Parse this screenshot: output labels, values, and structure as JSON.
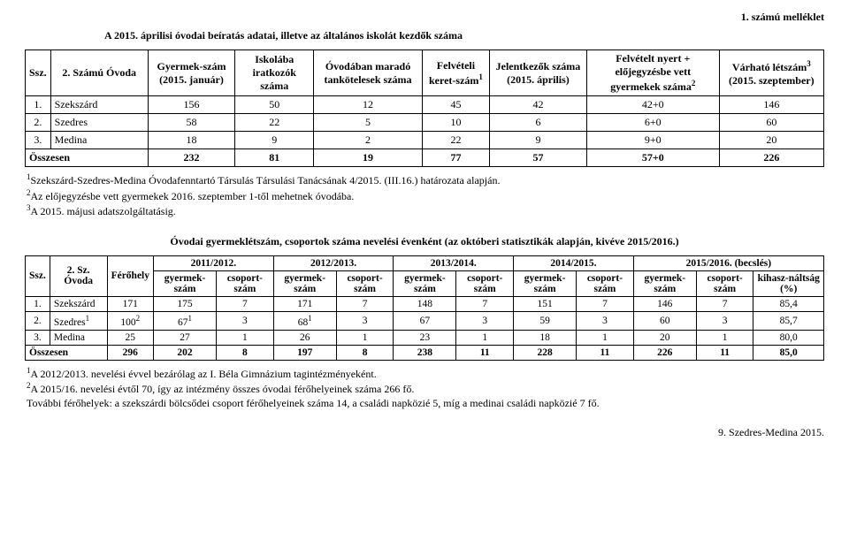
{
  "header_right": "1. számú melléklet",
  "title": "A 2015. áprilisi óvodai beíratás adatai, illetve az általános iskolát kezdők száma",
  "t1": {
    "headers": {
      "ssz": "Ssz.",
      "ovoda": "2. Számú Óvoda",
      "gyermek": "Gyermek-szám (2015. január)",
      "iskolaba": "Iskolába iratkozók száma",
      "ovodaban": "Óvodában maradó tankötelesek száma",
      "felveteli": "Felvételi keret-szám",
      "felveteli_sup": "1",
      "jelentkezok": "Jelentkezők száma (2015. április)",
      "nyert": "Felvételt nyert + előjegyzésbe vett gyermekek száma",
      "nyert_sup": "2",
      "varhato": "Várható létszám",
      "varhato_sup": "3",
      "varhato2": " (2015. szeptember)"
    },
    "rows": [
      {
        "n": "1.",
        "name": "Szekszárd",
        "a": "156",
        "b": "50",
        "c": "12",
        "d": "45",
        "e": "42",
        "f": "42+0",
        "g": "146"
      },
      {
        "n": "2.",
        "name": "Szedres",
        "a": "58",
        "b": "22",
        "c": "5",
        "d": "10",
        "e": "6",
        "f": "6+0",
        "g": "60"
      },
      {
        "n": "3.",
        "name": "Medina",
        "a": "18",
        "b": "9",
        "c": "2",
        "d": "22",
        "e": "9",
        "f": "9+0",
        "g": "20"
      }
    ],
    "total": {
      "label": "Összesen",
      "a": "232",
      "b": "81",
      "c": "19",
      "d": "77",
      "e": "57",
      "f": "57+0",
      "g": "226"
    }
  },
  "notes1": {
    "n1_sup": "1",
    "n1": "Szekszárd-Szedres-Medina Óvodafenntartó Társulás Társulási Tanácsának 4/2015. (III.16.) határozata alapján.",
    "n2_sup": "2",
    "n2": "Az előjegyzésbe vett gyermekek 2016. szeptember 1-től mehetnek óvodába.",
    "n3_sup": "3",
    "n3": "A 2015. májusi adatszolgáltatásig."
  },
  "title2": "Óvodai gyermeklétszám, csoportok száma nevelési évenként (az októberi statisztikák alapján, kivéve 2015/2016.)",
  "t2": {
    "years": [
      "2011/2012.",
      "2012/2013.",
      "2013/2014.",
      "2014/2015.",
      "2015/2016. (becslés)"
    ],
    "h": {
      "ssz": "Ssz.",
      "ovoda": "2. Sz. Óvoda",
      "ferohely": "Férőhely",
      "gy": "gyermek-szám",
      "cs": "csoport-szám",
      "kih": "kihasz-náltság (%)"
    },
    "rows": [
      {
        "n": "1.",
        "name": "Szekszárd",
        "sup": "",
        "fh": "171",
        "c": [
          "175",
          "7",
          "171",
          "7",
          "148",
          "7",
          "151",
          "7",
          "146",
          "7"
        ],
        "k": "85,4"
      },
      {
        "n": "2.",
        "name": "Szedres",
        "sup": "1",
        "fh": "100",
        "fhs": "2",
        "c": [
          "67",
          "3",
          "68",
          "3",
          "67",
          "3",
          "59",
          "3",
          "60",
          "3"
        ],
        "cs1": "1",
        "cs2": "1",
        "k": "85,7"
      },
      {
        "n": "3.",
        "name": "Medina",
        "sup": "",
        "fh": "25",
        "c": [
          "27",
          "1",
          "26",
          "1",
          "23",
          "1",
          "18",
          "1",
          "20",
          "1"
        ],
        "k": "80,0"
      }
    ],
    "total": {
      "label": "Összesen",
      "fh": "296",
      "c": [
        "202",
        "8",
        "197",
        "8",
        "238",
        "11",
        "228",
        "11",
        "226",
        "11"
      ],
      "k": "85,0"
    }
  },
  "notes2": {
    "n1_sup": "1",
    "n1": "A 2012/2013. nevelési évvel bezárólag az I. Béla Gimnázium tagintézményeként.",
    "n2_sup": "2",
    "n2": "A 2015/16. nevelési évtől 70, így az intézmény összes óvodai férőhelyeinek száma 266 fő.",
    "n3": "További férőhelyek: a szekszárdi bölcsődei csoport férőhelyeinek száma 14, a családi napközié 5, míg a medinai családi napközié 7 fő."
  },
  "footer": "9. Szedres-Medina 2015."
}
